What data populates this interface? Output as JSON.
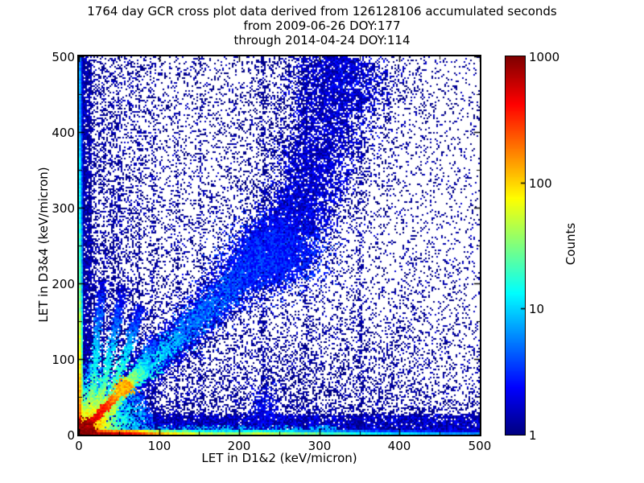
{
  "chart_data": {
    "type": "heatmap",
    "subtype": "2d-histogram-cross-plot",
    "title_lines": [
      "1764 day GCR cross plot data derived from 126128106 accumulated seconds",
      "from 2009-06-26 DOY:177",
      "through 2014-04-24 DOY:114"
    ],
    "xlabel": "LET in D1&2 (keV/micron)",
    "ylabel": "LET in D3&4 (keV/micron)",
    "xlim": [
      0,
      500
    ],
    "ylim": [
      0,
      500
    ],
    "x_ticks": [
      0,
      100,
      200,
      300,
      400,
      500
    ],
    "y_ticks": [
      0,
      100,
      200,
      300,
      400,
      500
    ],
    "minor_tick_step": 50,
    "grid": false,
    "colorbar": {
      "label": "Counts",
      "scale": "log",
      "min": 1,
      "max": 1000,
      "ticks": [
        1,
        10,
        100,
        1000
      ],
      "colormap": "jet",
      "position": "right"
    },
    "colors": {
      "background": "#ffffff",
      "frame": "#000000",
      "single_count_dot": "#000083",
      "max_count": "#800000"
    },
    "notable_features": [
      "intense hot spot (~1000 counts, dark red) at the origin",
      "bright red/orange unity diagonal ridge from origin to ~(60,65) with yellow hotspot near (57,63)",
      "several bright arc tracks fanning upward from the origin toward (29,205),(56,196),(77,170),(95,125)",
      "broad blue diagonal coincidence band y~x from origin steepening above (235,240) and exiting top near x~330",
      "denser blue blob on the band near (245,237)",
      "red-to-cyan horizontal band along y~0 spanning full x range",
      "dense blue column along x~0 spanning full y range",
      "faint vertical streaks near x = 18,30,42,50,65,75,93,123,152,230,283,352",
      "scattered single counts densest at low x/low y, sparse in upper right"
    ],
    "render": {
      "features": [
        {
          "kind": "scatter",
          "name": "uniform-background",
          "n": 1600,
          "c": 1,
          "j": 0.3
        },
        {
          "kind": "scatter",
          "name": "left-weighted-full-height",
          "xpow": 3.2,
          "n": 4500,
          "c": 1.1,
          "j": 0.35
        },
        {
          "kind": "scatter",
          "name": "lower-left-dense",
          "xpow": 2.6,
          "ypow": 2.6,
          "n": 6500,
          "c": 1.2,
          "j": 0.4
        },
        {
          "kind": "scatter",
          "name": "bottom-weighted",
          "ypow": 3.4,
          "xpow": 1.25,
          "n": 9000,
          "c": 1.2,
          "j": 0.4
        },
        {
          "kind": "blob",
          "name": "lower-right-cloud",
          "x": 310,
          "y": 75,
          "sx": 85,
          "sy": 55,
          "n": 1600,
          "c": 1.1,
          "j": 0.3
        },
        {
          "kind": "blob",
          "name": "upper-mid-halo",
          "x": 255,
          "y": 420,
          "sx": 60,
          "sy": 60,
          "n": 750,
          "c": 1,
          "j": 0.2
        },
        {
          "kind": "scatter",
          "name": "left-edge-speckle",
          "xmax": 16,
          "xpow": 1.8,
          "n": 3800,
          "c": 1.3,
          "j": 0.4
        },
        {
          "kind": "scatter",
          "name": "bottom-band-speckle",
          "ymax": 26,
          "ypow": 1.4,
          "xpow": 1.2,
          "n": 7500,
          "c": 1.6,
          "j": 0.5
        },
        {
          "kind": "scatter",
          "name": "bottom-cyan-flecks",
          "ymax": 12,
          "xmax": 320,
          "n": 700,
          "c": 7,
          "j": 0.4
        },
        {
          "kind": "vline",
          "name": "streak-18",
          "x": 18,
          "n": 200
        },
        {
          "kind": "vline",
          "name": "streak-30",
          "x": 30,
          "n": 280
        },
        {
          "kind": "vline",
          "name": "streak-42",
          "x": 42,
          "n": 300
        },
        {
          "kind": "vline",
          "name": "streak-50",
          "x": 50,
          "n": 450
        },
        {
          "kind": "vline",
          "name": "streak-65",
          "x": 65,
          "n": 220
        },
        {
          "kind": "vline",
          "name": "streak-75",
          "x": 75,
          "n": 260
        },
        {
          "kind": "vline",
          "name": "streak-93",
          "x": 93,
          "n": 340
        },
        {
          "kind": "vline",
          "name": "streak-123",
          "x": 123,
          "n": 260
        },
        {
          "kind": "vline",
          "name": "streak-152",
          "x": 152,
          "n": 200
        },
        {
          "kind": "vline",
          "name": "streak-230",
          "x": 230,
          "n": 420
        },
        {
          "kind": "vline",
          "name": "streak-283",
          "x": 283,
          "n": 200
        },
        {
          "kind": "vline",
          "name": "streak-352",
          "x": 352,
          "n": 300
        },
        {
          "kind": "blob",
          "name": "streak-230-stem",
          "x": 232,
          "y": 28,
          "sx": 8,
          "sy": 20,
          "n": 380,
          "c": 2.2,
          "j": 0.35
        },
        {
          "kind": "curve",
          "name": "diagonal-band-halo",
          "pts": [
            [
              0,
              0
            ],
            [
              120,
              122
            ],
            [
              235,
              240
            ],
            [
              275,
              295
            ],
            [
              300,
              370
            ],
            [
              318,
              450
            ],
            [
              330,
              500
            ]
          ],
          "w0": 18,
          "w1": 70,
          "c0": 1,
          "c1": 1,
          "j": 0.25,
          "n": 3800
        },
        {
          "kind": "curve",
          "name": "diagonal-band-lower",
          "pts": [
            [
              0,
              0
            ],
            [
              60,
              62
            ],
            [
              120,
              122
            ],
            [
              180,
              185
            ],
            [
              235,
              240
            ]
          ],
          "w0": 7,
          "w1": 17,
          "c0": 1.9,
          "c1": 2.3,
          "j": 0.45,
          "n": 7200
        },
        {
          "kind": "curve",
          "name": "diagonal-band-upper",
          "pts": [
            [
              235,
              240
            ],
            [
              265,
              272
            ],
            [
              285,
              315
            ],
            [
              300,
              370
            ],
            [
              315,
              440
            ],
            [
              328,
              500
            ]
          ],
          "w0": 18,
          "w1": 30,
          "c0": 2.2,
          "c1": 1.5,
          "j": 0.4,
          "n": 6500
        },
        {
          "kind": "blob",
          "name": "band-dense-blob",
          "x": 245,
          "y": 237,
          "sx": 28,
          "sy": 22,
          "n": 2600,
          "c": 2.8,
          "j": 0.35
        },
        {
          "kind": "blob",
          "name": "band-top-column",
          "x": 330,
          "y": 470,
          "sx": 25,
          "sy": 30,
          "n": 900,
          "c": 2,
          "j": 0.4
        },
        {
          "kind": "curve",
          "name": "band-bright-base",
          "pts": [
            [
              55,
              57
            ],
            [
              90,
              92
            ],
            [
              130,
              133
            ]
          ],
          "w0": 5,
          "w1": 8,
          "c0": 25,
          "c1": 6,
          "j": 0.4,
          "n": 900
        },
        {
          "kind": "curve",
          "name": "band-mid",
          "pts": [
            [
              130,
              133
            ],
            [
              180,
              184
            ],
            [
              235,
              240
            ]
          ],
          "w0": 8,
          "w1": 12,
          "c0": 6,
          "c1": 3,
          "j": 0.4,
          "n": 1300
        },
        {
          "kind": "fan",
          "name": "origin-fan",
          "rmax": 95,
          "rpow": 1.8,
          "cr": [
            [
              0,
              900
            ],
            [
              8,
              500
            ],
            [
              16,
              200
            ],
            [
              26,
              90
            ],
            [
              40,
              35
            ],
            [
              60,
              12
            ],
            [
              95,
              4
            ]
          ],
          "j": 0.5,
          "n": 5200
        },
        {
          "kind": "curve",
          "name": "arc-a",
          "pts": [
            [
              12,
              16
            ],
            [
              18,
              64
            ],
            [
              24,
              140
            ],
            [
              29,
              205
            ]
          ],
          "w0": 2,
          "w1": 3,
          "c0": 90,
          "c1": 1.5,
          "j": 0.4,
          "n": 900
        },
        {
          "kind": "curve",
          "name": "arc-b",
          "pts": [
            [
              15,
              13
            ],
            [
              30,
              60
            ],
            [
              44,
              132
            ],
            [
              56,
              196
            ]
          ],
          "w0": 2.2,
          "w1": 3,
          "c0": 110,
          "c1": 1.5,
          "j": 0.4,
          "n": 1000
        },
        {
          "kind": "curve",
          "name": "arc-c",
          "pts": [
            [
              19,
              11
            ],
            [
              41,
              55
            ],
            [
              63,
              118
            ],
            [
              77,
              170
            ]
          ],
          "w0": 2.4,
          "w1": 3.2,
          "c0": 130,
          "c1": 2,
          "j": 0.4,
          "n": 1000
        },
        {
          "kind": "curve",
          "name": "arc-d",
          "pts": [
            [
              24,
              10
            ],
            [
              50,
              45
            ],
            [
              78,
              92
            ],
            [
              95,
              125
            ]
          ],
          "w0": 2.4,
          "w1": 3.5,
          "c0": 100,
          "c1": 3,
          "j": 0.4,
          "n": 800
        },
        {
          "kind": "curve",
          "name": "unity-ridge",
          "pts": [
            [
              2,
              3
            ],
            [
              22,
              24
            ],
            [
              40,
              43
            ]
          ],
          "w0": 1.6,
          "w1": 2.2,
          "c0": 800,
          "c1": 260,
          "j": 0.3,
          "n": 900
        },
        {
          "kind": "curve",
          "name": "unity-ridge-ext",
          "pts": [
            [
              40,
              43
            ],
            [
              52,
              57
            ],
            [
              64,
              70
            ]
          ],
          "w0": 2.2,
          "w1": 3,
          "c0": 220,
          "c1": 60,
          "j": 0.35,
          "n": 550
        },
        {
          "kind": "blob",
          "name": "ridge-hotspot",
          "x": 57,
          "y": 63,
          "sx": 6,
          "sy": 5,
          "n": 280,
          "c": 130,
          "j": 0.3
        },
        {
          "kind": "curve",
          "name": "unity-ridge-fade",
          "pts": [
            [
              64,
              70
            ],
            [
              76,
              83
            ],
            [
              88,
              97
            ]
          ],
          "w0": 3,
          "w1": 4,
          "c0": 45,
          "c1": 8,
          "j": 0.4,
          "n": 420
        },
        {
          "kind": "strip_h",
          "name": "bottom-strip",
          "profile": [
            [
              0,
              950
            ],
            [
              40,
              650
            ],
            [
              70,
              380
            ],
            [
              90,
              170
            ],
            [
              110,
              95
            ],
            [
              140,
              60
            ],
            [
              170,
              40
            ],
            [
              200,
              38
            ],
            [
              225,
              50
            ],
            [
              250,
              40
            ],
            [
              300,
              24
            ],
            [
              340,
              16
            ],
            [
              400,
              10
            ],
            [
              460,
              7
            ],
            [
              500,
              6
            ]
          ]
        },
        {
          "kind": "strip_v",
          "name": "left-strip",
          "profile": [
            [
              0,
              800
            ],
            [
              25,
              220
            ],
            [
              60,
              110
            ],
            [
              120,
              55
            ],
            [
              200,
              26
            ],
            [
              300,
              13
            ],
            [
              400,
              8
            ],
            [
              500,
              6
            ]
          ]
        },
        {
          "kind": "blob",
          "name": "origin-hotspot",
          "x": 3,
          "y": 3,
          "sx": 7,
          "sy": 7,
          "n": 700,
          "c": 900,
          "j": 0.25
        }
      ]
    }
  }
}
